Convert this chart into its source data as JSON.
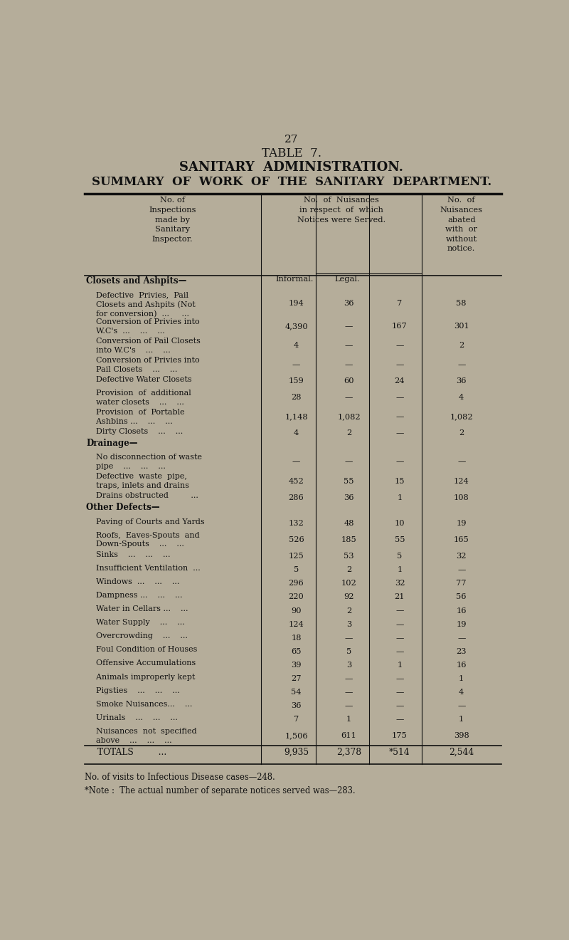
{
  "page_number": "27",
  "title_line1": "TABLE  7.",
  "title_line2": "SANITARY  ADMINISTRATION.",
  "title_line3": "SUMMARY  OF  WORK  OF  THE  SANITARY  DEPARTMENT.",
  "bg_color": "#b5ad9a",
  "text_color": "#111111",
  "rows": [
    {
      "label": "Closets and Ashpits—",
      "bold": true,
      "header": true,
      "v1": "",
      "v2": "",
      "v3": "",
      "v4": ""
    },
    {
      "label": "    Defective  Privies,  Pail\n    Closets and Ashpits (Not\n    for conversion)  ...     ...",
      "bold": false,
      "header": false,
      "v1": "194",
      "v2": "36",
      "v3": "7",
      "v4": "58"
    },
    {
      "label": "    Conversion of Privies into\n    W.C's  ...    ...    ...",
      "bold": false,
      "header": false,
      "v1": "4,390",
      "v2": "—",
      "v3": "167",
      "v4": "301"
    },
    {
      "label": "    Conversion of Pail Closets\n    into W.C's    ...    ...",
      "bold": false,
      "header": false,
      "v1": "4",
      "v2": "—",
      "v3": "—",
      "v4": "2"
    },
    {
      "label": "    Conversion of Privies into\n    Pail Closets    ...    ...",
      "bold": false,
      "header": false,
      "v1": "—",
      "v2": "—",
      "v3": "—",
      "v4": "—"
    },
    {
      "label": "    Defective Water Closets",
      "bold": false,
      "header": false,
      "v1": "159",
      "v2": "60",
      "v3": "24",
      "v4": "36"
    },
    {
      "label": "    Provision  of  additional\n    water closets    ...    ...",
      "bold": false,
      "header": false,
      "v1": "28",
      "v2": "—",
      "v3": "—",
      "v4": "4"
    },
    {
      "label": "    Provision  of  Portable\n    Ashbins ...    ...    ...",
      "bold": false,
      "header": false,
      "v1": "1,148",
      "v2": "1,082",
      "v3": "—",
      "v4": "1,082"
    },
    {
      "label": "    Dirty Closets    ...    ...",
      "bold": false,
      "header": false,
      "v1": "4",
      "v2": "2",
      "v3": "—",
      "v4": "2"
    },
    {
      "label": "Drainage—",
      "bold": true,
      "header": true,
      "v1": "",
      "v2": "",
      "v3": "",
      "v4": ""
    },
    {
      "label": "    No disconnection of waste\n    pipe    ...    ...    ...",
      "bold": false,
      "header": false,
      "v1": "—",
      "v2": "—",
      "v3": "—",
      "v4": "—"
    },
    {
      "label": "    Defective  waste  pipe,\n    traps, inlets and drains",
      "bold": false,
      "header": false,
      "v1": "452",
      "v2": "55",
      "v3": "15",
      "v4": "124"
    },
    {
      "label": "    Drains obstructed         ...",
      "bold": false,
      "header": false,
      "v1": "286",
      "v2": "36",
      "v3": "1",
      "v4": "108"
    },
    {
      "label": "Other Defects—",
      "bold": true,
      "header": true,
      "v1": "",
      "v2": "",
      "v3": "",
      "v4": ""
    },
    {
      "label": "    Paving of Courts and Yards",
      "bold": false,
      "header": false,
      "v1": "132",
      "v2": "48",
      "v3": "10",
      "v4": "19"
    },
    {
      "label": "    Roofs,  Eaves-Spouts  and\n    Down-Spouts    ...    ...",
      "bold": false,
      "header": false,
      "v1": "526",
      "v2": "185",
      "v3": "55",
      "v4": "165"
    },
    {
      "label": "    Sinks    ...    ...    ...",
      "bold": false,
      "header": false,
      "v1": "125",
      "v2": "53",
      "v3": "5",
      "v4": "32"
    },
    {
      "label": "    Insufficient Ventilation  ...",
      "bold": false,
      "header": false,
      "v1": "5",
      "v2": "2",
      "v3": "1",
      "v4": "—"
    },
    {
      "label": "    Windows  ...    ...    ...",
      "bold": false,
      "header": false,
      "v1": "296",
      "v2": "102",
      "v3": "32",
      "v4": "77"
    },
    {
      "label": "    Dampness ...    ...    ...",
      "bold": false,
      "header": false,
      "v1": "220",
      "v2": "92",
      "v3": "21",
      "v4": "56"
    },
    {
      "label": "    Water in Cellars ...    ...",
      "bold": false,
      "header": false,
      "v1": "90",
      "v2": "2",
      "v3": "—",
      "v4": "16"
    },
    {
      "label": "    Water Supply    ...    ...",
      "bold": false,
      "header": false,
      "v1": "124",
      "v2": "3",
      "v3": "—",
      "v4": "19"
    },
    {
      "label": "    Overcrowding    ...    ...",
      "bold": false,
      "header": false,
      "v1": "18",
      "v2": "—",
      "v3": "—",
      "v4": "—"
    },
    {
      "label": "    Foul Condition of Houses",
      "bold": false,
      "header": false,
      "v1": "65",
      "v2": "5",
      "v3": "—",
      "v4": "23"
    },
    {
      "label": "    Offensive Accumulations",
      "bold": false,
      "header": false,
      "v1": "39",
      "v2": "3",
      "v3": "1",
      "v4": "16"
    },
    {
      "label": "    Animals improperly kept",
      "bold": false,
      "header": false,
      "v1": "27",
      "v2": "—",
      "v3": "—",
      "v4": "1"
    },
    {
      "label": "    Pigsties    ...    ...    ...",
      "bold": false,
      "header": false,
      "v1": "54",
      "v2": "—",
      "v3": "—",
      "v4": "4"
    },
    {
      "label": "    Smoke Nuisances...    ...",
      "bold": false,
      "header": false,
      "v1": "36",
      "v2": "—",
      "v3": "—",
      "v4": "—"
    },
    {
      "label": "    Urinals    ...    ...    ...",
      "bold": false,
      "header": false,
      "v1": "7",
      "v2": "1",
      "v3": "—",
      "v4": "1"
    },
    {
      "label": "    Nuisances  not  specified\n    above    ...    ...    ...",
      "bold": false,
      "header": false,
      "v1": "1,506",
      "v2": "611",
      "v3": "175",
      "v4": "398"
    },
    {
      "label": "TOTALS         ...",
      "bold": false,
      "header": false,
      "totals": true,
      "v1": "9,935",
      "v2": "2,378",
      "v3": "*514",
      "v4": "2,544"
    }
  ],
  "footer1": "No. of visits to Infectious Disease cases—248.",
  "footer2": "*Note :  The actual number of separate notices served was—283."
}
